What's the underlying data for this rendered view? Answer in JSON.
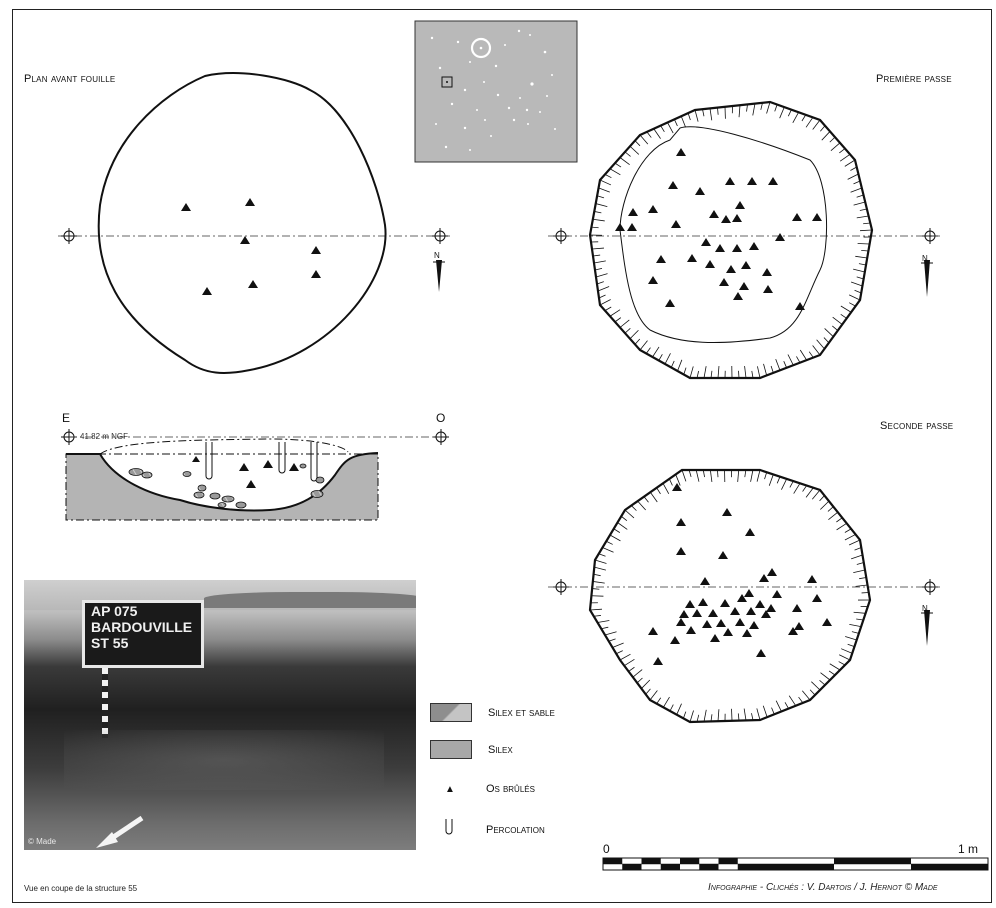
{
  "labels": {
    "plan_avant_fouille": "Plan avant fouille",
    "premiere_passe": "Première passe",
    "seconde_passe": "Seconde passe"
  },
  "section": {
    "east": "E",
    "west": "O",
    "elevation": "41.82 m NGF"
  },
  "north_marker": "N",
  "legend": [
    {
      "label": "Silex et sable",
      "icon": "diagonal-grey-rect-icon"
    },
    {
      "label": "Silex",
      "icon": "grey-rect-icon"
    },
    {
      "label": "Os brûlés",
      "icon": "triangle-icon"
    },
    {
      "label": "Percolation",
      "icon": "percolation-icon"
    }
  ],
  "scale": {
    "start": "0",
    "end": "1 m"
  },
  "photo": {
    "sign_lines": [
      "AP 075",
      "BARDOUVILLE",
      "ST 55"
    ],
    "credit": "© Made"
  },
  "caption": "Vue en coupe de la structure 55",
  "credits": "Infographie - Clichés : V. Dartois / J. Hernot © Made",
  "colors": {
    "grey_fill": "#b4b4b4",
    "inset_bg": "#b9b9b9",
    "line": "#111111"
  }
}
